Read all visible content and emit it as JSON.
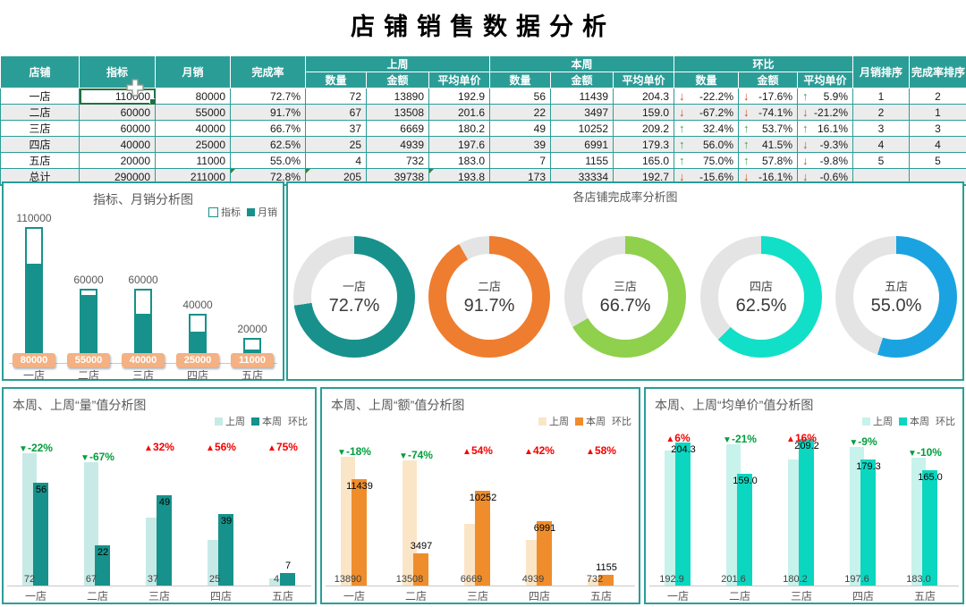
{
  "title": "店铺销售数据分析",
  "colors": {
    "table_header_bg": "#2B9D97",
    "table_row_alt": "#ECECEC",
    "table_border": "#2B9D97",
    "arrow_up": "#3BA05B",
    "arrow_down": "#D04A2A",
    "selection_border": "#1E7145",
    "error_flag": "#2E8B2E",
    "marker_up": "#F60000",
    "marker_down": "#009E3C",
    "badge_bg": "#F4B183",
    "chart_title": "#595959"
  },
  "table": {
    "headers": {
      "store": "店铺",
      "target": "指标",
      "monthly": "月销",
      "rate": "完成率",
      "last_week": "上周",
      "this_week": "本周",
      "wow": "环比",
      "qty": "数量",
      "amount": "金额",
      "avg_price": "平均单价",
      "rank_monthly": "月销排序",
      "rank_rate": "完成率排序"
    },
    "rows": [
      {
        "store": "一店",
        "target": "110000",
        "monthly": "80000",
        "rate": "72.7%",
        "lw": [
          "72",
          "13890",
          "192.9"
        ],
        "tw": [
          "56",
          "11439",
          "204.3"
        ],
        "wow": [
          {
            "dir": "down",
            "text": "-22.2%"
          },
          {
            "dir": "down",
            "text": "-17.6%"
          },
          {
            "dir": "up",
            "text": "5.9%"
          }
        ],
        "rank_m": "1",
        "rank_r": "2",
        "selected": "target"
      },
      {
        "store": "二店",
        "target": "60000",
        "monthly": "55000",
        "rate": "91.7%",
        "lw": [
          "67",
          "13508",
          "201.6"
        ],
        "tw": [
          "22",
          "3497",
          "159.0"
        ],
        "wow": [
          {
            "dir": "down",
            "text": "-67.2%"
          },
          {
            "dir": "down",
            "text": "-74.1%"
          },
          {
            "dir": "down",
            "text": "-21.2%"
          }
        ],
        "rank_m": "2",
        "rank_r": "1"
      },
      {
        "store": "三店",
        "target": "60000",
        "monthly": "40000",
        "rate": "66.7%",
        "lw": [
          "37",
          "6669",
          "180.2"
        ],
        "tw": [
          "49",
          "10252",
          "209.2"
        ],
        "wow": [
          {
            "dir": "up",
            "text": "32.4%"
          },
          {
            "dir": "up",
            "text": "53.7%"
          },
          {
            "dir": "up",
            "text": "16.1%"
          }
        ],
        "rank_m": "3",
        "rank_r": "3"
      },
      {
        "store": "四店",
        "target": "40000",
        "monthly": "25000",
        "rate": "62.5%",
        "lw": [
          "25",
          "4939",
          "197.6"
        ],
        "tw": [
          "39",
          "6991",
          "179.3"
        ],
        "wow": [
          {
            "dir": "up",
            "text": "56.0%"
          },
          {
            "dir": "up",
            "text": "41.5%"
          },
          {
            "dir": "down",
            "text": "-9.3%"
          }
        ],
        "rank_m": "4",
        "rank_r": "4"
      },
      {
        "store": "五店",
        "target": "20000",
        "monthly": "11000",
        "rate": "55.0%",
        "lw": [
          "4",
          "732",
          "183.0"
        ],
        "tw": [
          "7",
          "1155",
          "165.0"
        ],
        "wow": [
          {
            "dir": "up",
            "text": "75.0%"
          },
          {
            "dir": "up",
            "text": "57.8%"
          },
          {
            "dir": "down",
            "text": "-9.8%"
          }
        ],
        "rank_m": "5",
        "rank_r": "5"
      },
      {
        "store": "总计",
        "target": "290000",
        "monthly": "211000",
        "rate": "72.8%",
        "lw": [
          "205",
          "39738",
          "193.8"
        ],
        "tw": [
          "173",
          "33334",
          "192.7"
        ],
        "wow": [
          {
            "dir": "down",
            "text": "-15.6%"
          },
          {
            "dir": "down",
            "text": "-16.1%"
          },
          {
            "dir": "down",
            "text": "-0.6%"
          }
        ],
        "rank_m": "",
        "rank_r": "",
        "flags": [
          "rate",
          "lw0",
          "lw2"
        ]
      }
    ]
  },
  "chart_data": [
    {
      "type": "bar",
      "title": "指标、月销分析图",
      "categories": [
        "一店",
        "二店",
        "三店",
        "四店",
        "五店"
      ],
      "series": [
        {
          "name": "指标",
          "style": "outline",
          "color": "#17918B",
          "values": [
            110000,
            60000,
            60000,
            40000,
            20000
          ],
          "labels": [
            "110000",
            "60000",
            "60000",
            "40000",
            "20000"
          ]
        },
        {
          "name": "月销",
          "style": "solid",
          "color": "#17918B",
          "values": [
            80000,
            55000,
            40000,
            25000,
            11000
          ],
          "labels": [
            "80000",
            "55000",
            "40000",
            "25000",
            "11000"
          ]
        }
      ],
      "ylim": [
        0,
        110000
      ],
      "legend_position": "top-right",
      "grid": false
    },
    {
      "type": "donut",
      "title": "各店铺完成率分析图",
      "track_color": "#E4E4E4",
      "items": [
        {
          "label": "一店",
          "value": 72.7,
          "pct_text": "72.7%",
          "color": "#18918C"
        },
        {
          "label": "二店",
          "value": 91.7,
          "pct_text": "91.7%",
          "color": "#EE7D2F"
        },
        {
          "label": "三店",
          "value": 66.7,
          "pct_text": "66.7%",
          "color": "#8FD04C"
        },
        {
          "label": "四店",
          "value": 62.5,
          "pct_text": "62.5%",
          "color": "#12DFC8"
        },
        {
          "label": "五店",
          "value": 55.0,
          "pct_text": "55.0%",
          "color": "#1BA3E1"
        }
      ]
    },
    {
      "type": "bar",
      "title": "本周、上周“量”值分析图",
      "categories": [
        "一店",
        "二店",
        "三店",
        "四店",
        "五店"
      ],
      "series": [
        {
          "name": "上周",
          "color": "#C7EAE7",
          "values": [
            72,
            67,
            37,
            25,
            4
          ],
          "labels": [
            "72",
            "67",
            "37",
            "25",
            "4"
          ]
        },
        {
          "name": "本周",
          "color": "#17918B",
          "values": [
            56,
            22,
            49,
            39,
            7
          ],
          "labels": [
            "56",
            "22",
            "49",
            "39",
            "7"
          ]
        }
      ],
      "markers": {
        "name": "环比",
        "items": [
          {
            "dir": "down",
            "text": "-22%"
          },
          {
            "dir": "down",
            "text": "-67%"
          },
          {
            "dir": "up",
            "text": "32%"
          },
          {
            "dir": "up",
            "text": "56%"
          },
          {
            "dir": "up",
            "text": "75%"
          }
        ]
      },
      "ylim": [
        0,
        80
      ],
      "legend_position": "top-right",
      "grid": false
    },
    {
      "type": "bar",
      "title": "本周、上周“额”值分析图",
      "categories": [
        "一店",
        "二店",
        "三店",
        "四店",
        "五店"
      ],
      "series": [
        {
          "name": "上周",
          "color": "#FBE5C7",
          "values": [
            13890,
            13508,
            6669,
            4939,
            732
          ],
          "labels": [
            "13890",
            "13508",
            "6669",
            "4939",
            "732"
          ]
        },
        {
          "name": "本周",
          "color": "#EF8D2C",
          "values": [
            11439,
            3497,
            10252,
            6991,
            1155
          ],
          "labels": [
            "11439",
            "3497",
            "10252",
            "6991",
            "1155"
          ]
        }
      ],
      "markers": {
        "name": "环比",
        "items": [
          {
            "dir": "down",
            "text": "-18%"
          },
          {
            "dir": "down",
            "text": "-74%"
          },
          {
            "dir": "up",
            "text": "54%"
          },
          {
            "dir": "up",
            "text": "42%"
          },
          {
            "dir": "up",
            "text": "58%"
          }
        ]
      },
      "ylim": [
        0,
        16000
      ],
      "legend_position": "top-right",
      "grid": false
    },
    {
      "type": "bar",
      "title": "本周、上周“均单价”值分析图",
      "categories": [
        "一店",
        "二店",
        "三店",
        "四店",
        "五店"
      ],
      "series": [
        {
          "name": "上周",
          "color": "#C8F2EC",
          "values": [
            192.9,
            201.6,
            180.2,
            197.6,
            183.0
          ],
          "labels": [
            "192.9",
            "201.6",
            "180.2",
            "197.6",
            "183.0"
          ]
        },
        {
          "name": "本周",
          "color": "#0BD6C0",
          "values": [
            204.3,
            159.0,
            209.2,
            179.3,
            165.0
          ],
          "labels": [
            "204.3",
            "159.0",
            "209.2",
            "179.3",
            "165.0"
          ]
        }
      ],
      "markers": {
        "name": "环比",
        "items": [
          {
            "dir": "up",
            "text": "6%"
          },
          {
            "dir": "down",
            "text": "-21%"
          },
          {
            "dir": "up",
            "text": "16%"
          },
          {
            "dir": "down",
            "text": "-9%"
          },
          {
            "dir": "down",
            "text": "-10%"
          }
        ]
      },
      "ylim": [
        0,
        250
      ],
      "legend_position": "top-right",
      "grid": false
    }
  ]
}
